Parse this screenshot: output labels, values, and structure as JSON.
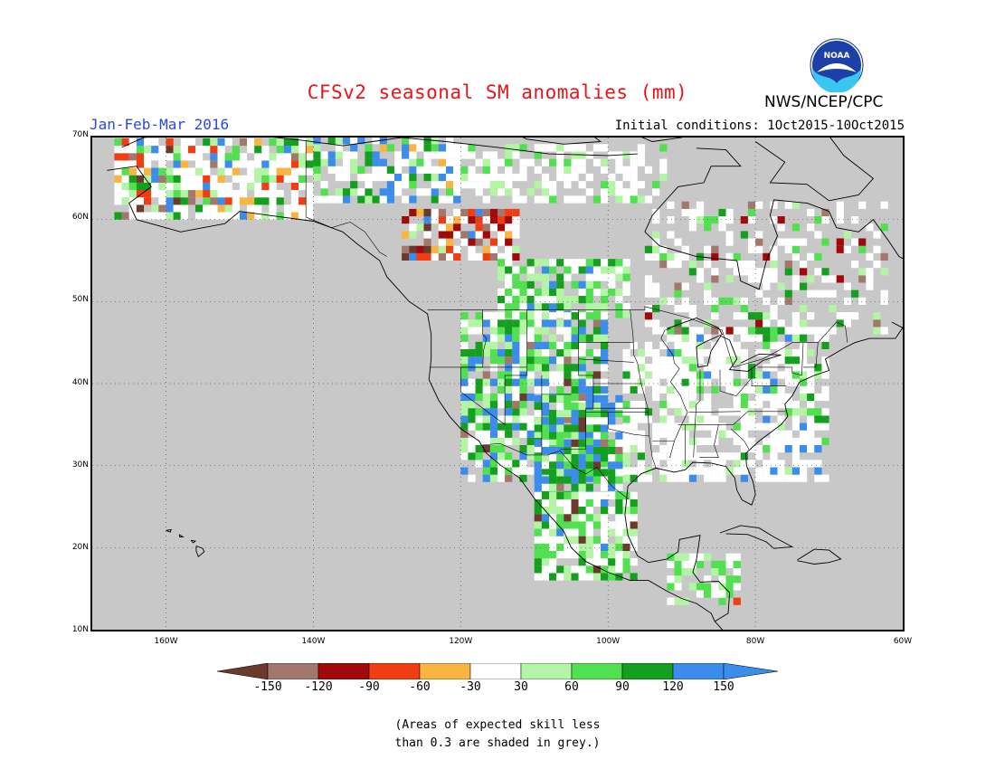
{
  "title": "CFSv2 seasonal SM anomalies (mm)",
  "season": "Jan-Feb-Mar 2016",
  "initial_conditions": "Initial conditions: 1Oct2015-10Oct2015",
  "agency": "NWS/NCEP/CPC",
  "logo_text": "NOAA",
  "lat_labels": [
    "70N",
    "60N",
    "50N",
    "40N",
    "30N",
    "20N",
    "10N"
  ],
  "lon_labels": [
    "160W",
    "140W",
    "120W",
    "100W",
    "80W",
    "60W"
  ],
  "colorbar": {
    "ticks": [
      "-150",
      "-120",
      "-90",
      "-60",
      "-30",
      "30",
      "60",
      "90",
      "120",
      "150"
    ],
    "colors": [
      "#6b3a2c",
      "#a2776c",
      "#a00a0a",
      "#f23c12",
      "#fab441",
      "#ffffff",
      "#b4f5a5",
      "#50e050",
      "#14a01e",
      "#3c8ceb",
      "#3c8ceb"
    ]
  },
  "note_line1": "(Areas of expected skill less",
  "note_line2": "than 0.3 are shaded in grey.)",
  "colors": {
    "grey": "#c8c8c8",
    "title": "#e8141a",
    "season": "#2b48e0"
  }
}
